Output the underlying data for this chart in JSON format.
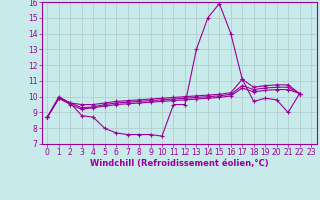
{
  "xlabel": "Windchill (Refroidissement éolien,°C)",
  "bg_color": "#c8eaea",
  "line_color": "#990099",
  "grid_color": "#b0c8c8",
  "xlim": [
    -0.5,
    23.5
  ],
  "ylim": [
    7,
    16
  ],
  "yticks": [
    7,
    8,
    9,
    10,
    11,
    12,
    13,
    14,
    15,
    16
  ],
  "xticks": [
    0,
    1,
    2,
    3,
    4,
    5,
    6,
    7,
    8,
    9,
    10,
    11,
    12,
    13,
    14,
    15,
    16,
    17,
    18,
    19,
    20,
    21,
    22,
    23
  ],
  "series1": [
    8.7,
    10.0,
    9.6,
    8.8,
    8.7,
    8.0,
    7.7,
    7.6,
    7.6,
    7.6,
    7.5,
    9.5,
    9.5,
    13.0,
    15.0,
    15.9,
    14.0,
    11.1,
    9.7,
    9.9,
    9.8,
    9.0,
    10.2,
    null
  ],
  "series2": [
    8.7,
    9.9,
    9.5,
    9.2,
    9.3,
    9.4,
    9.5,
    9.55,
    9.6,
    9.65,
    9.7,
    9.75,
    9.8,
    9.85,
    9.9,
    9.95,
    10.05,
    10.55,
    10.3,
    10.4,
    10.45,
    10.45,
    10.2,
    null
  ],
  "series3": [
    8.7,
    9.9,
    9.6,
    9.3,
    9.35,
    9.5,
    9.6,
    9.65,
    9.7,
    9.75,
    9.8,
    9.85,
    9.9,
    9.95,
    10.0,
    10.05,
    10.15,
    10.7,
    10.45,
    10.55,
    10.6,
    10.6,
    10.2,
    null
  ],
  "series4": [
    8.7,
    9.9,
    9.6,
    9.5,
    9.5,
    9.6,
    9.7,
    9.75,
    9.8,
    9.85,
    9.9,
    9.95,
    10.0,
    10.05,
    10.1,
    10.15,
    10.25,
    11.1,
    10.6,
    10.7,
    10.75,
    10.75,
    10.2,
    null
  ],
  "tick_fontsize": 5.5,
  "xlabel_fontsize": 6.0
}
